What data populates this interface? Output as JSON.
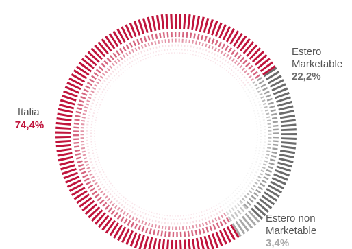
{
  "chart_data": {
    "type": "pie",
    "style": "dashed radial donut",
    "slices": [
      {
        "key": "estero_marketable",
        "label_lines": [
          "Estero",
          "Marketable"
        ],
        "value": 22.2,
        "value_label": "22,2%",
        "color": "#6b6b6b"
      },
      {
        "key": "estero_non_marketable",
        "label_lines": [
          "Estero non",
          "Marketable"
        ],
        "value": 3.4,
        "value_label": "3,4%",
        "color": "#a8a8a8"
      },
      {
        "key": "italia",
        "label_lines": [
          "Italia"
        ],
        "value": 74.4,
        "value_label": "74,4%",
        "color": "#c0143c"
      }
    ],
    "colors": {
      "label_text": "#555555",
      "italia_fade": "#e8a3b3",
      "marketable_fade": "#d6d6d6",
      "non_marketable_fade": "#e0e0e0"
    }
  }
}
